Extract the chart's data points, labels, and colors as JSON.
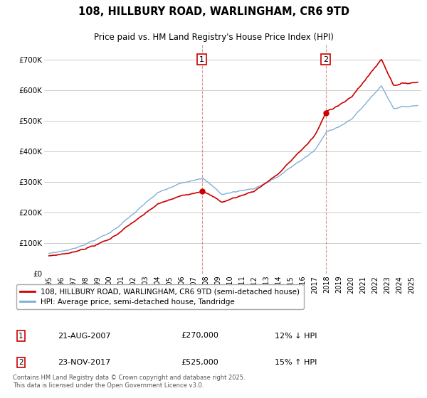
{
  "title": "108, HILLBURY ROAD, WARLINGHAM, CR6 9TD",
  "subtitle": "Price paid vs. HM Land Registry's House Price Index (HPI)",
  "legend_line1": "108, HILLBURY ROAD, WARLINGHAM, CR6 9TD (semi-detached house)",
  "legend_line2": "HPI: Average price, semi-detached house, Tandridge",
  "annotation1_label": "1",
  "annotation1_date": "21-AUG-2007",
  "annotation1_price": "£270,000",
  "annotation1_hpi": "12% ↓ HPI",
  "annotation2_label": "2",
  "annotation2_date": "23-NOV-2017",
  "annotation2_price": "£525,000",
  "annotation2_hpi": "15% ↑ HPI",
  "footer": "Contains HM Land Registry data © Crown copyright and database right 2025.\nThis data is licensed under the Open Government Licence v3.0.",
  "red_color": "#cc0000",
  "blue_color": "#7aadd4",
  "annotation_box_color": "#cc0000",
  "background_color": "#ffffff",
  "grid_color": "#cccccc",
  "ylim": [
    0,
    750000
  ],
  "yticks": [
    0,
    100000,
    200000,
    300000,
    400000,
    500000,
    600000,
    700000
  ],
  "ytick_labels": [
    "£0",
    "£100K",
    "£200K",
    "£300K",
    "£400K",
    "£500K",
    "£600K",
    "£700K"
  ],
  "ann1_x": 2007.65,
  "ann1_y": 270000,
  "ann2_x": 2017.9,
  "ann2_y": 525000,
  "xmin": 1994.6,
  "xmax": 2025.8
}
